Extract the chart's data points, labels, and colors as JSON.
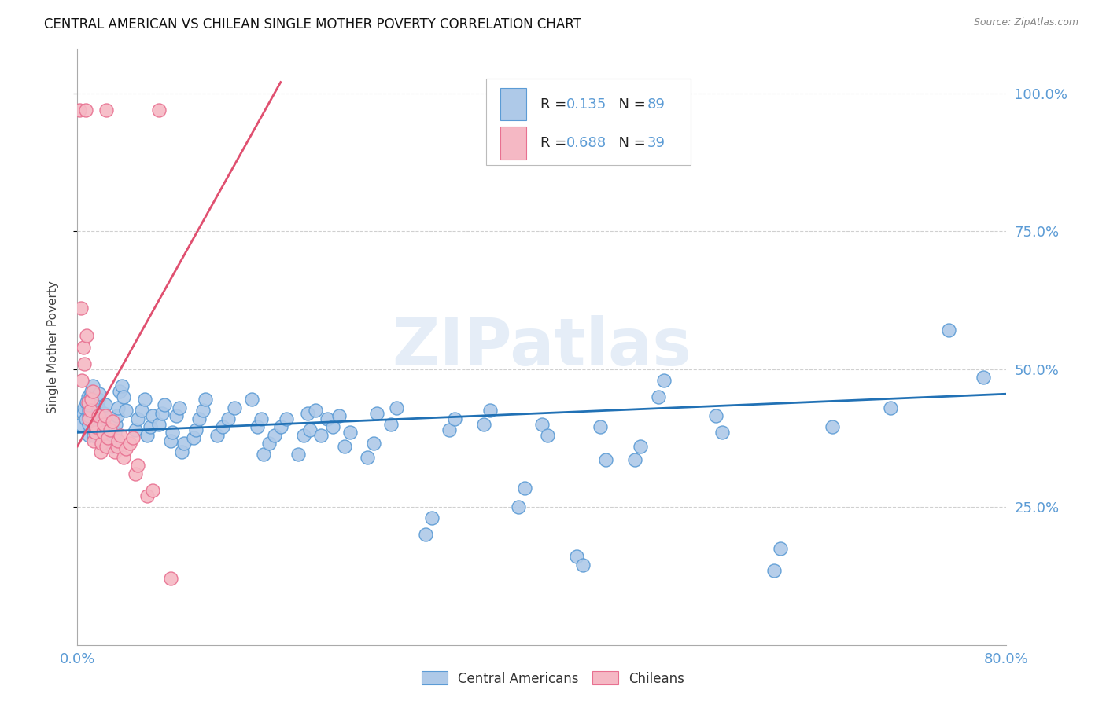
{
  "title": "CENTRAL AMERICAN VS CHILEAN SINGLE MOTHER POVERTY CORRELATION CHART",
  "source": "Source: ZipAtlas.com",
  "ylabel": "Single Mother Poverty",
  "xlim": [
    0.0,
    0.8
  ],
  "ylim": [
    0.0,
    1.08
  ],
  "yticks": [
    0.25,
    0.5,
    0.75,
    1.0
  ],
  "ytick_labels": [
    "25.0%",
    "50.0%",
    "75.0%",
    "100.0%"
  ],
  "legend_label1": "Central Americans",
  "legend_label2": "Chileans",
  "blue_scatter_face": "#aec9e8",
  "blue_scatter_edge": "#5b9bd5",
  "pink_scatter_face": "#f5b8c4",
  "pink_scatter_edge": "#e87090",
  "line_blue": "#2171b5",
  "line_pink": "#e05070",
  "axis_color": "#5b9bd5",
  "grid_color": "#d0d0d0",
  "watermark": "ZIPatlas",
  "blue_trend_x": [
    0.0,
    0.8
  ],
  "blue_trend_y": [
    0.385,
    0.455
  ],
  "pink_trend_x": [
    0.0,
    0.175
  ],
  "pink_trend_y": [
    0.36,
    1.02
  ],
  "blue_pts": [
    [
      0.003,
      0.4
    ],
    [
      0.005,
      0.42
    ],
    [
      0.006,
      0.43
    ],
    [
      0.007,
      0.41
    ],
    [
      0.008,
      0.44
    ],
    [
      0.009,
      0.45
    ],
    [
      0.01,
      0.38
    ],
    [
      0.01,
      0.4
    ],
    [
      0.01,
      0.415
    ],
    [
      0.01,
      0.425
    ],
    [
      0.01,
      0.435
    ],
    [
      0.011,
      0.45
    ],
    [
      0.012,
      0.46
    ],
    [
      0.013,
      0.47
    ],
    [
      0.014,
      0.38
    ],
    [
      0.015,
      0.39
    ],
    [
      0.016,
      0.4
    ],
    [
      0.017,
      0.42
    ],
    [
      0.018,
      0.43
    ],
    [
      0.018,
      0.445
    ],
    [
      0.019,
      0.455
    ],
    [
      0.02,
      0.37
    ],
    [
      0.021,
      0.385
    ],
    [
      0.022,
      0.395
    ],
    [
      0.022,
      0.41
    ],
    [
      0.023,
      0.42
    ],
    [
      0.024,
      0.435
    ],
    [
      0.03,
      0.36
    ],
    [
      0.031,
      0.375
    ],
    [
      0.032,
      0.385
    ],
    [
      0.033,
      0.4
    ],
    [
      0.034,
      0.415
    ],
    [
      0.035,
      0.43
    ],
    [
      0.036,
      0.46
    ],
    [
      0.038,
      0.47
    ],
    [
      0.04,
      0.45
    ],
    [
      0.042,
      0.425
    ],
    [
      0.05,
      0.39
    ],
    [
      0.052,
      0.41
    ],
    [
      0.055,
      0.425
    ],
    [
      0.058,
      0.445
    ],
    [
      0.06,
      0.38
    ],
    [
      0.063,
      0.395
    ],
    [
      0.065,
      0.415
    ],
    [
      0.07,
      0.4
    ],
    [
      0.073,
      0.42
    ],
    [
      0.075,
      0.435
    ],
    [
      0.08,
      0.37
    ],
    [
      0.082,
      0.385
    ],
    [
      0.085,
      0.415
    ],
    [
      0.088,
      0.43
    ],
    [
      0.09,
      0.35
    ],
    [
      0.092,
      0.365
    ],
    [
      0.1,
      0.375
    ],
    [
      0.102,
      0.39
    ],
    [
      0.105,
      0.41
    ],
    [
      0.108,
      0.425
    ],
    [
      0.11,
      0.445
    ],
    [
      0.12,
      0.38
    ],
    [
      0.125,
      0.395
    ],
    [
      0.13,
      0.41
    ],
    [
      0.135,
      0.43
    ],
    [
      0.15,
      0.445
    ],
    [
      0.155,
      0.395
    ],
    [
      0.158,
      0.41
    ],
    [
      0.16,
      0.345
    ],
    [
      0.165,
      0.365
    ],
    [
      0.17,
      0.38
    ],
    [
      0.175,
      0.395
    ],
    [
      0.18,
      0.41
    ],
    [
      0.19,
      0.345
    ],
    [
      0.195,
      0.38
    ],
    [
      0.198,
      0.42
    ],
    [
      0.2,
      0.39
    ],
    [
      0.205,
      0.425
    ],
    [
      0.21,
      0.38
    ],
    [
      0.215,
      0.41
    ],
    [
      0.22,
      0.395
    ],
    [
      0.225,
      0.415
    ],
    [
      0.23,
      0.36
    ],
    [
      0.235,
      0.385
    ],
    [
      0.25,
      0.34
    ],
    [
      0.255,
      0.365
    ],
    [
      0.258,
      0.42
    ],
    [
      0.27,
      0.4
    ],
    [
      0.275,
      0.43
    ],
    [
      0.3,
      0.2
    ],
    [
      0.305,
      0.23
    ],
    [
      0.32,
      0.39
    ],
    [
      0.325,
      0.41
    ],
    [
      0.35,
      0.4
    ],
    [
      0.355,
      0.425
    ],
    [
      0.38,
      0.25
    ],
    [
      0.385,
      0.285
    ],
    [
      0.4,
      0.4
    ],
    [
      0.405,
      0.38
    ],
    [
      0.43,
      0.16
    ],
    [
      0.435,
      0.145
    ],
    [
      0.45,
      0.395
    ],
    [
      0.455,
      0.335
    ],
    [
      0.48,
      0.335
    ],
    [
      0.485,
      0.36
    ],
    [
      0.5,
      0.45
    ],
    [
      0.505,
      0.48
    ],
    [
      0.55,
      0.415
    ],
    [
      0.555,
      0.385
    ],
    [
      0.6,
      0.135
    ],
    [
      0.605,
      0.175
    ],
    [
      0.65,
      0.395
    ],
    [
      0.7,
      0.43
    ],
    [
      0.75,
      0.57
    ],
    [
      0.78,
      0.485
    ]
  ],
  "pink_pts": [
    [
      0.002,
      0.97
    ],
    [
      0.007,
      0.97
    ],
    [
      0.025,
      0.97
    ],
    [
      0.07,
      0.97
    ],
    [
      0.003,
      0.61
    ],
    [
      0.009,
      0.44
    ],
    [
      0.004,
      0.48
    ],
    [
      0.006,
      0.51
    ],
    [
      0.005,
      0.54
    ],
    [
      0.008,
      0.56
    ],
    [
      0.01,
      0.41
    ],
    [
      0.011,
      0.425
    ],
    [
      0.012,
      0.445
    ],
    [
      0.013,
      0.46
    ],
    [
      0.014,
      0.37
    ],
    [
      0.015,
      0.385
    ],
    [
      0.016,
      0.395
    ],
    [
      0.018,
      0.415
    ],
    [
      0.02,
      0.35
    ],
    [
      0.021,
      0.365
    ],
    [
      0.022,
      0.385
    ],
    [
      0.023,
      0.4
    ],
    [
      0.024,
      0.415
    ],
    [
      0.025,
      0.36
    ],
    [
      0.026,
      0.375
    ],
    [
      0.028,
      0.39
    ],
    [
      0.03,
      0.405
    ],
    [
      0.032,
      0.35
    ],
    [
      0.034,
      0.36
    ],
    [
      0.035,
      0.37
    ],
    [
      0.037,
      0.38
    ],
    [
      0.04,
      0.34
    ],
    [
      0.042,
      0.355
    ],
    [
      0.045,
      0.365
    ],
    [
      0.048,
      0.375
    ],
    [
      0.05,
      0.31
    ],
    [
      0.052,
      0.325
    ],
    [
      0.06,
      0.27
    ],
    [
      0.065,
      0.28
    ],
    [
      0.08,
      0.12
    ]
  ]
}
